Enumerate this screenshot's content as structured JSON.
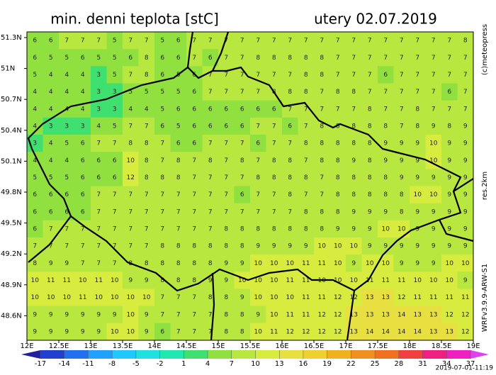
{
  "header": {
    "title": "min. denni teplota [stC]",
    "date": "utery 02.07.2019"
  },
  "side_labels": {
    "copyright": "(c)meteopress",
    "resolution": "res.2km",
    "model": "WRFv3.9.9-ARW-S1"
  },
  "lat_labels": [
    "51.3N",
    "51N",
    "50.7N",
    "50.4N",
    "50.1N",
    "49.8N",
    "49.5N",
    "49.2N",
    "48.9N",
    "48.6N"
  ],
  "lon_labels": [
    "12E",
    "12.5E",
    "13E",
    "13.5E",
    "14E",
    "14.5E",
    "15E",
    "15.5E",
    "16E",
    "16.5E",
    "17E",
    "17.5E",
    "18E",
    "18.5E",
    "19E"
  ],
  "colorbar": {
    "ticks": [
      -17,
      -14,
      -11,
      -8,
      -5,
      -2,
      1,
      4,
      7,
      10,
      13,
      16,
      19,
      22,
      25,
      28,
      31,
      34,
      37
    ],
    "colors": [
      "#2020a0",
      "#2040d0",
      "#2070f0",
      "#20a0ff",
      "#20c8ff",
      "#20e0e0",
      "#20e8b0",
      "#40e070",
      "#90e040",
      "#b8e840",
      "#d8ec40",
      "#e8e040",
      "#f0d030",
      "#f0b020",
      "#f09020",
      "#f07020",
      "#f04040",
      "#f02080",
      "#f020c0",
      "#e040f0"
    ]
  },
  "timestamp": "2019-07-01-11:19",
  "grid": [
    [
      6,
      6,
      7,
      7,
      7,
      5,
      7,
      7,
      5,
      6,
      7,
      7,
      7,
      7,
      7,
      7,
      7,
      7,
      7,
      7,
      7,
      7,
      7,
      7,
      7,
      7,
      7,
      8
    ],
    [
      6,
      5,
      5,
      6,
      5,
      5,
      6,
      8,
      6,
      6,
      7,
      6,
      7,
      7,
      8,
      8,
      8,
      8,
      8,
      7,
      7,
      7,
      7,
      7,
      7,
      7,
      7,
      7
    ],
    [
      5,
      4,
      4,
      4,
      3,
      5,
      7,
      8,
      6,
      5,
      6,
      7,
      7,
      7,
      7,
      7,
      7,
      8,
      8,
      7,
      7,
      7,
      6,
      7,
      7,
      7,
      7,
      7
    ],
    [
      4,
      4,
      4,
      4,
      3,
      3,
      5,
      5,
      5,
      5,
      6,
      7,
      7,
      7,
      7,
      8,
      8,
      8,
      7,
      8,
      8,
      7,
      7,
      7,
      7,
      7,
      6,
      7
    ],
    [
      4,
      4,
      4,
      4,
      3,
      3,
      4,
      4,
      5,
      6,
      6,
      6,
      6,
      6,
      6,
      6,
      7,
      7,
      7,
      7,
      7,
      8,
      7,
      7,
      8,
      7,
      7,
      7
    ],
    [
      4,
      3,
      3,
      3,
      4,
      5,
      7,
      7,
      6,
      5,
      6,
      6,
      6,
      6,
      7,
      7,
      6,
      7,
      8,
      8,
      8,
      8,
      8,
      7,
      8,
      9,
      8,
      9
    ],
    [
      3,
      4,
      5,
      6,
      7,
      7,
      8,
      8,
      7,
      6,
      6,
      7,
      7,
      7,
      6,
      7,
      7,
      8,
      8,
      8,
      8,
      8,
      9,
      9,
      9,
      10,
      9,
      9
    ],
    [
      4,
      4,
      4,
      6,
      6,
      6,
      10,
      8,
      7,
      8,
      7,
      8,
      7,
      8,
      7,
      8,
      8,
      7,
      8,
      8,
      9,
      8,
      9,
      9,
      9,
      10,
      9,
      9
    ],
    [
      5,
      5,
      5,
      6,
      6,
      6,
      12,
      8,
      8,
      8,
      7,
      7,
      7,
      7,
      8,
      8,
      8,
      8,
      7,
      8,
      8,
      8,
      8,
      9,
      9,
      9,
      9,
      9
    ],
    [
      6,
      6,
      6,
      6,
      7,
      7,
      7,
      7,
      7,
      7,
      7,
      7,
      7,
      6,
      7,
      7,
      8,
      7,
      7,
      8,
      8,
      8,
      8,
      8,
      10,
      10,
      9,
      9
    ],
    [
      6,
      6,
      6,
      6,
      7,
      7,
      7,
      7,
      7,
      7,
      7,
      7,
      7,
      7,
      7,
      7,
      7,
      8,
      8,
      8,
      9,
      9,
      9,
      8,
      9,
      9,
      9,
      9
    ],
    [
      6,
      7,
      7,
      7,
      7,
      7,
      7,
      7,
      7,
      7,
      7,
      7,
      8,
      8,
      8,
      8,
      8,
      8,
      8,
      9,
      9,
      9,
      10,
      10,
      9,
      9,
      9,
      9
    ],
    [
      7,
      7,
      7,
      7,
      7,
      7,
      7,
      7,
      8,
      8,
      8,
      8,
      8,
      8,
      9,
      9,
      9,
      9,
      10,
      10,
      10,
      9,
      9,
      9,
      9,
      9,
      9,
      9
    ],
    [
      8,
      9,
      9,
      7,
      7,
      7,
      8,
      8,
      8,
      8,
      8,
      8,
      9,
      9,
      10,
      10,
      10,
      11,
      11,
      10,
      9,
      10,
      10,
      9,
      9,
      9,
      10,
      10
    ],
    [
      10,
      11,
      11,
      10,
      11,
      10,
      9,
      9,
      8,
      8,
      8,
      9,
      9,
      10,
      10,
      10,
      11,
      11,
      10,
      10,
      10,
      11,
      11,
      11,
      10,
      10,
      10,
      9
    ],
    [
      10,
      10,
      10,
      11,
      10,
      10,
      10,
      10,
      7,
      7,
      7,
      8,
      8,
      9,
      10,
      10,
      10,
      11,
      11,
      12,
      12,
      13,
      13,
      12,
      11,
      11,
      11,
      11
    ],
    [
      9,
      9,
      9,
      9,
      9,
      9,
      10,
      9,
      7,
      7,
      7,
      7,
      8,
      8,
      9,
      10,
      11,
      11,
      12,
      12,
      13,
      13,
      13,
      14,
      13,
      13,
      12,
      12
    ],
    [
      9,
      9,
      9,
      9,
      9,
      10,
      10,
      9,
      6,
      7,
      7,
      7,
      8,
      8,
      10,
      11,
      12,
      12,
      12,
      12,
      13,
      14,
      14,
      14,
      14,
      13,
      13,
      12
    ]
  ]
}
